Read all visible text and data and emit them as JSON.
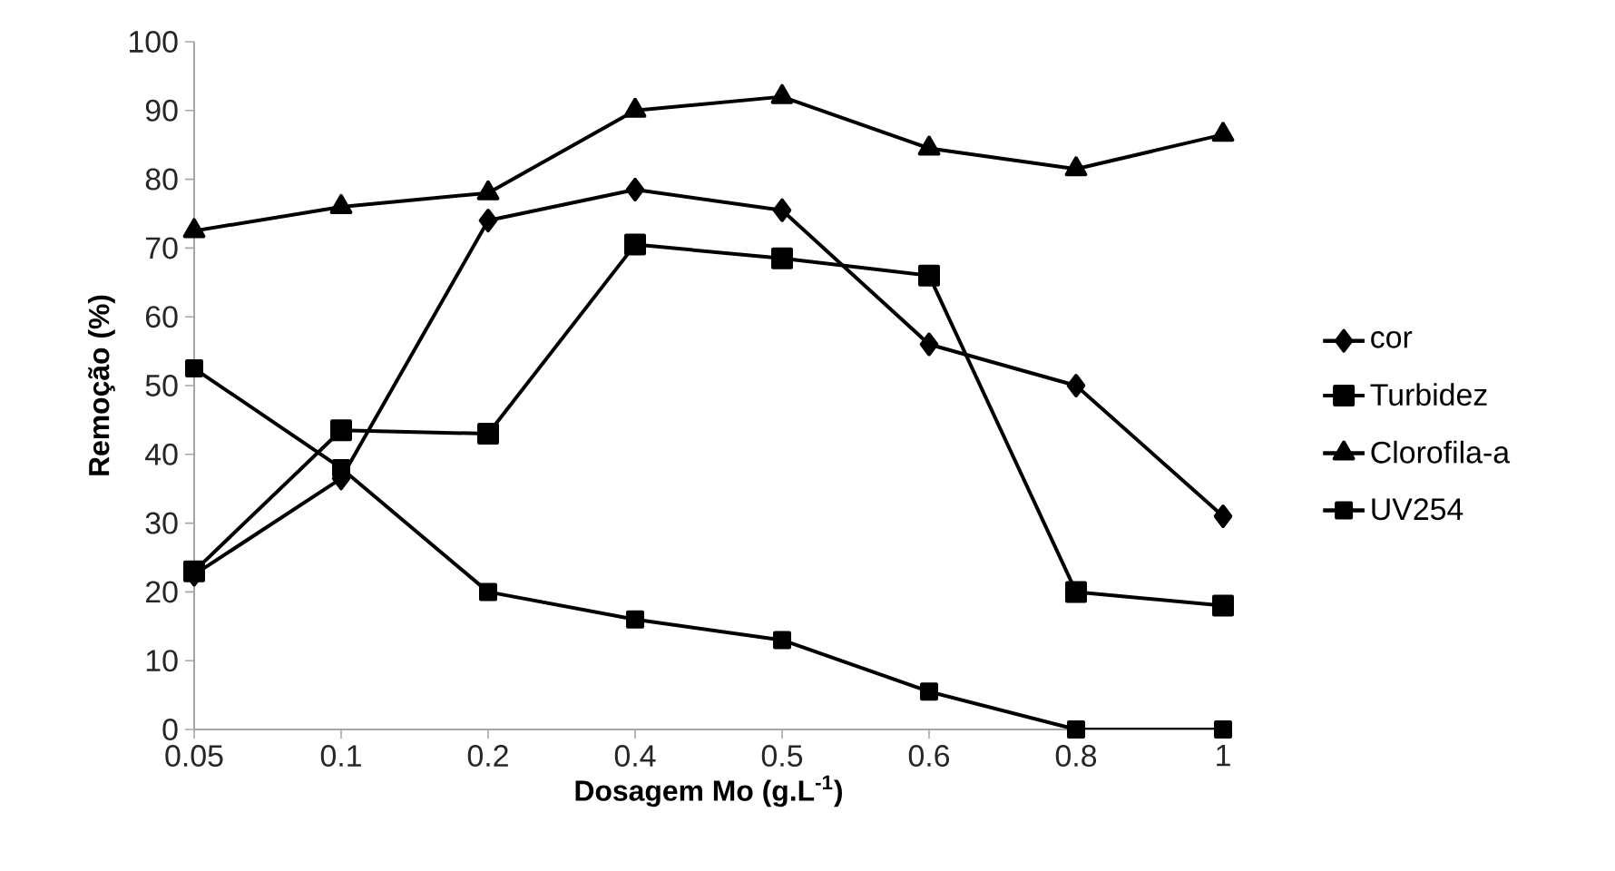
{
  "chart_data": {
    "type": "line",
    "xlabel": "Dosagem Mo (g.L$^{-1}$)",
    "ylabel": "Remoção (%)",
    "categories": [
      "0.05",
      "0.1",
      "0.2",
      "0.4",
      "0.5",
      "0.6",
      "0.8",
      "1"
    ],
    "series": [
      {
        "name": "cor",
        "color": "#000000",
        "marker": "diamond",
        "values": [
          22.5,
          36.5,
          74,
          78.5,
          75.5,
          56,
          50,
          31
        ]
      },
      {
        "name": "Turbidez",
        "color": "#000000",
        "marker": "square",
        "values": [
          23,
          43.5,
          43,
          70.5,
          68.5,
          66,
          20,
          18
        ]
      },
      {
        "name": "Clorofila-a",
        "color": "#000000",
        "marker": "triangle",
        "values": [
          72.5,
          76,
          78,
          90,
          92,
          84.5,
          81.5,
          86.5
        ]
      },
      {
        "name": "UV254",
        "color": "#000000",
        "marker": "square",
        "values": [
          52.5,
          38,
          20,
          16,
          13,
          5.5,
          0,
          0
        ]
      }
    ],
    "ylim": [
      0,
      100
    ],
    "yticks": [
      0,
      10,
      20,
      30,
      40,
      50,
      60,
      70,
      80,
      90,
      100
    ],
    "grid": false,
    "legend": "right",
    "line_style": "solid"
  }
}
